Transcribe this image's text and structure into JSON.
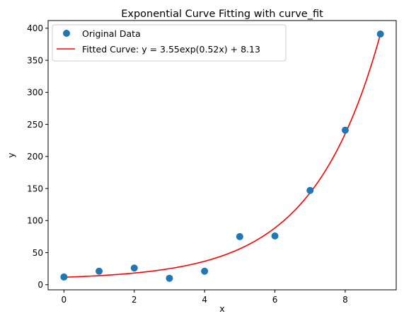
{
  "chart_data": {
    "type": "scatter",
    "title": "Exponential Curve Fitting with curve_fit",
    "xlabel": "x",
    "ylabel": "y",
    "xlim": [
      -0.45,
      9.45
    ],
    "ylim": [
      -8,
      412
    ],
    "xticks": [
      0,
      2,
      4,
      6,
      8
    ],
    "xtick_labels": [
      "0",
      "2",
      "4",
      "6",
      "8"
    ],
    "yticks": [
      0,
      50,
      100,
      150,
      200,
      250,
      300,
      350,
      400
    ],
    "ytick_labels": [
      "0",
      "50",
      "100",
      "150",
      "200",
      "250",
      "300",
      "350",
      "400"
    ],
    "grid": false,
    "legend_position": "top-left",
    "series": [
      {
        "name": "Original Data",
        "kind": "scatter",
        "color": "#1f77b4",
        "x": [
          0,
          1,
          2,
          3,
          4,
          5,
          6,
          7,
          8,
          9
        ],
        "y": [
          12,
          21,
          26,
          10,
          21,
          75,
          76,
          147,
          241,
          391
        ]
      },
      {
        "name": "Fitted Curve: y = 3.55exp(0.52x) + 8.13",
        "kind": "line",
        "color": "#ff0000",
        "model": {
          "a": 3.55,
          "b": 0.52,
          "c": 8.13,
          "x_start": 0,
          "x_end": 9
        }
      }
    ]
  }
}
